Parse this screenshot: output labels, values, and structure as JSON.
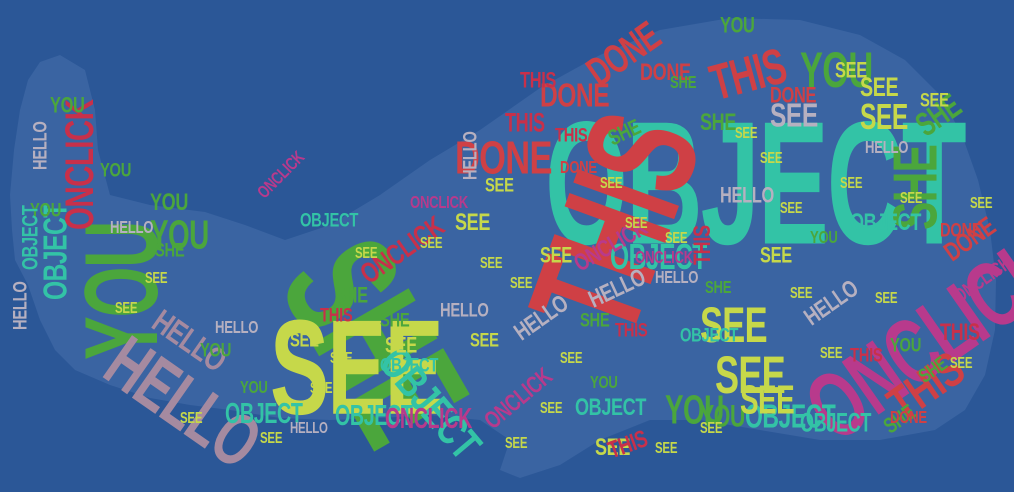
{
  "background": "#2b5797",
  "whale_fill": "#3a64a2",
  "palette": {
    "teal": "#33c3a6",
    "green": "#4ba63c",
    "lime": "#c6d84a",
    "red": "#cf4045",
    "crimson": "#c8304a",
    "magenta": "#b83a8c",
    "mauve": "#a58aa0",
    "gray": "#b6b0c0"
  },
  "words": [
    "OBJECT",
    "SHE",
    "SEE",
    "THIS",
    "ONCLICK",
    "YOU",
    "HELLO",
    "DONE",
    "OBJECT",
    "SHE",
    "YOU",
    "SEE",
    "SEE",
    "SEE",
    "THIS",
    "THIS",
    "HELLO",
    "HELLO",
    "HELLO",
    "YOU",
    "YOU",
    "DONE",
    "DONE",
    "DONE",
    "ONCLICK",
    "OBJECT",
    "OBJECT",
    "OBJECT",
    "OBJECT",
    "OBJECT",
    "OBJECT",
    "OBJECT",
    "OBJECT",
    "ONCLICK",
    "YOU",
    "YOU",
    "YOU",
    "SEE",
    "SEE",
    "SEE",
    "SEE",
    "SEE",
    "THIS",
    "THIS",
    "THIS",
    "THIS",
    "THIS",
    "SHE",
    "SHE",
    "SHE",
    "SHE",
    "SHE",
    "SHE",
    "SHE",
    "HELLO",
    "HELLO",
    "HELLO",
    "HELLO",
    "HELLO",
    "HELLO",
    "HELLO",
    "HELLO",
    "ONCLICK",
    "ONCLICK",
    "ONCLICK",
    "ONCLICK",
    "ONCLICK",
    "SEE",
    "SEE",
    "SEE",
    "SEE",
    "SEE",
    "SEE",
    "SEE",
    "SEE",
    "YOU",
    "YOU",
    "YOU",
    "YOU",
    "YOU",
    "YOU",
    "DONE",
    "DONE",
    "DONE",
    "DONE",
    "DONE",
    "OBJECT",
    "OBJECT",
    "OBJECT",
    "OBJECT",
    "THIS",
    "THIS",
    "THIS",
    "THIS",
    "SHE",
    "SHE",
    "SHE",
    "SHE",
    "HELLO",
    "HELLO",
    "HELLO",
    "ONCLICK",
    "ONCLICK",
    "YOU",
    "YOU",
    "SEE",
    "SEE",
    "SEE",
    "SEE",
    "SEE",
    "SEE",
    "SEE",
    "SEE",
    "SEE",
    "SEE",
    "SEE",
    "SEE",
    "SEE",
    "SEE",
    "SEE",
    "SEE",
    "SEE",
    "SEE",
    "SEE",
    "SEE",
    "SEE",
    "SEE",
    "SEE",
    "SEE",
    "SEE",
    "SEE",
    "SEE",
    "SEE"
  ]
}
